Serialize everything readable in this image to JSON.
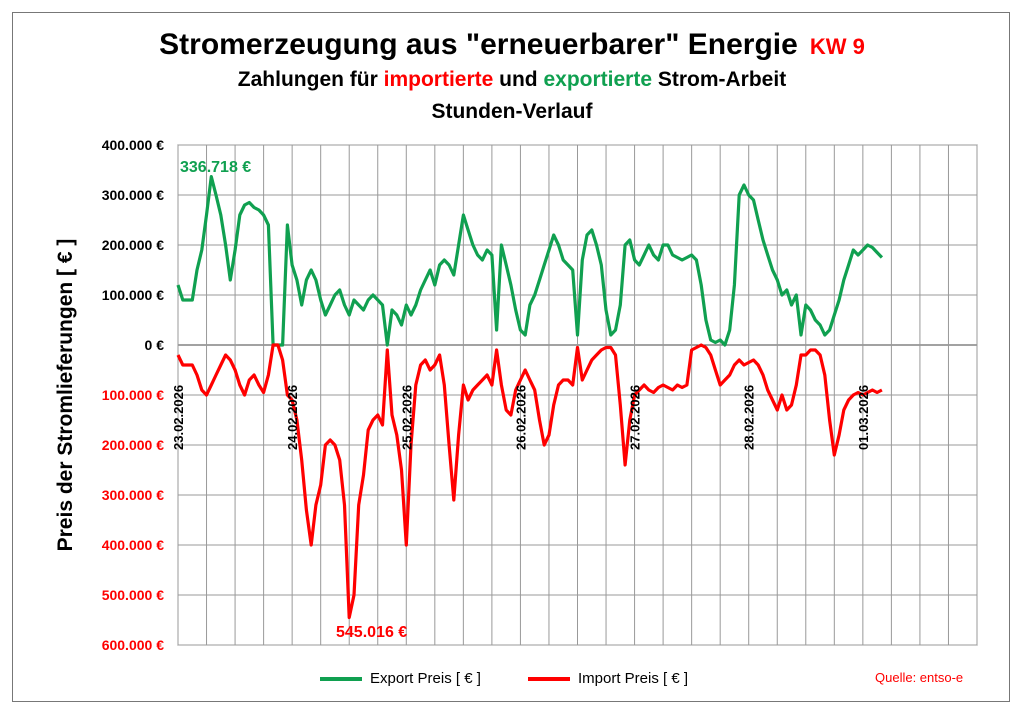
{
  "title": {
    "main": "Stromerzeugung aus \"erneuerbarer\" Energie",
    "week": "KW 9",
    "line2_pre": "Zahlungen für ",
    "line2_import": "importierte",
    "line2_mid": " und ",
    "line2_export": "exportierte",
    "line2_post": " Strom-Arbeit",
    "line3": "Stunden-Verlauf"
  },
  "colors": {
    "export": "#10a050",
    "import": "#ff0000",
    "grid": "#999999"
  },
  "legend": {
    "export_label": "Export Preis [ € ]",
    "import_label": "Import Preis [ € ]"
  },
  "source": "Quelle: entso-e",
  "chart_data": {
    "type": "line",
    "ylabel": "Preis der Stromlieferungen [ € ]",
    "ylim": [
      -600000,
      400000
    ],
    "ytick_values": [
      400000,
      300000,
      200000,
      100000,
      0,
      -100000,
      -200000,
      -300000,
      -400000,
      -500000,
      -600000
    ],
    "ytick_labels": [
      "400.000 €",
      "300.000 €",
      "200.000 €",
      "100.000 €",
      "0 €",
      "100.000 €",
      "200.000 €",
      "300.000 €",
      "400.000 €",
      "500.000 €",
      "600.000 €"
    ],
    "x_hours": 168,
    "xtick_labels": [
      "23.02.2026",
      "24.02.2026",
      "25.02.2026",
      "26.02.2026",
      "27.02.2026",
      "28.02.2026",
      "01.03.2026"
    ],
    "annotations": {
      "export_max": "336.718 €",
      "import_max": "545.016 €"
    },
    "series": [
      {
        "name": "Export Preis [ € ]",
        "points": [
          [
            0,
            120000
          ],
          [
            1,
            90000
          ],
          [
            3,
            90000
          ],
          [
            4,
            150000
          ],
          [
            5,
            190000
          ],
          [
            6,
            260000
          ],
          [
            7,
            336718
          ],
          [
            8,
            300000
          ],
          [
            9,
            260000
          ],
          [
            10,
            200000
          ],
          [
            11,
            130000
          ],
          [
            12,
            190000
          ],
          [
            13,
            260000
          ],
          [
            14,
            280000
          ],
          [
            15,
            285000
          ],
          [
            16,
            275000
          ],
          [
            17,
            270000
          ],
          [
            18,
            260000
          ],
          [
            19,
            240000
          ],
          [
            20,
            0
          ],
          [
            21,
            0
          ],
          [
            22,
            0
          ],
          [
            23,
            240000
          ],
          [
            24,
            160000
          ],
          [
            25,
            130000
          ],
          [
            26,
            80000
          ],
          [
            27,
            130000
          ],
          [
            28,
            150000
          ],
          [
            29,
            130000
          ],
          [
            30,
            90000
          ],
          [
            31,
            60000
          ],
          [
            32,
            80000
          ],
          [
            33,
            100000
          ],
          [
            34,
            110000
          ],
          [
            35,
            80000
          ],
          [
            36,
            60000
          ],
          [
            37,
            90000
          ],
          [
            38,
            80000
          ],
          [
            39,
            70000
          ],
          [
            40,
            90000
          ],
          [
            41,
            100000
          ],
          [
            42,
            90000
          ],
          [
            43,
            80000
          ],
          [
            44,
            0
          ],
          [
            45,
            70000
          ],
          [
            46,
            60000
          ],
          [
            47,
            40000
          ],
          [
            48,
            80000
          ],
          [
            49,
            60000
          ],
          [
            50,
            80000
          ],
          [
            51,
            110000
          ],
          [
            52,
            130000
          ],
          [
            53,
            150000
          ],
          [
            54,
            120000
          ],
          [
            55,
            160000
          ],
          [
            56,
            170000
          ],
          [
            57,
            160000
          ],
          [
            58,
            140000
          ],
          [
            59,
            200000
          ],
          [
            60,
            260000
          ],
          [
            61,
            230000
          ],
          [
            62,
            200000
          ],
          [
            63,
            180000
          ],
          [
            64,
            170000
          ],
          [
            65,
            190000
          ],
          [
            66,
            180000
          ],
          [
            67,
            30000
          ],
          [
            68,
            200000
          ],
          [
            69,
            160000
          ],
          [
            70,
            120000
          ],
          [
            71,
            70000
          ],
          [
            72,
            30000
          ],
          [
            73,
            20000
          ],
          [
            74,
            80000
          ],
          [
            75,
            100000
          ],
          [
            76,
            130000
          ],
          [
            77,
            160000
          ],
          [
            78,
            190000
          ],
          [
            79,
            220000
          ],
          [
            80,
            200000
          ],
          [
            81,
            170000
          ],
          [
            82,
            160000
          ],
          [
            83,
            150000
          ],
          [
            84,
            20000
          ],
          [
            85,
            170000
          ],
          [
            86,
            220000
          ],
          [
            87,
            230000
          ],
          [
            88,
            200000
          ],
          [
            89,
            160000
          ],
          [
            90,
            70000
          ],
          [
            91,
            20000
          ],
          [
            92,
            30000
          ],
          [
            93,
            80000
          ],
          [
            94,
            200000
          ],
          [
            95,
            210000
          ],
          [
            96,
            170000
          ],
          [
            97,
            160000
          ],
          [
            98,
            180000
          ],
          [
            99,
            200000
          ],
          [
            100,
            180000
          ],
          [
            101,
            170000
          ],
          [
            102,
            200000
          ],
          [
            103,
            200000
          ],
          [
            104,
            180000
          ],
          [
            105,
            175000
          ],
          [
            106,
            170000
          ],
          [
            107,
            175000
          ],
          [
            108,
            180000
          ],
          [
            109,
            170000
          ],
          [
            110,
            120000
          ],
          [
            111,
            50000
          ],
          [
            112,
            10000
          ],
          [
            113,
            5000
          ],
          [
            114,
            10000
          ],
          [
            115,
            0
          ],
          [
            116,
            30000
          ],
          [
            117,
            120000
          ],
          [
            118,
            300000
          ],
          [
            119,
            320000
          ],
          [
            120,
            300000
          ],
          [
            121,
            290000
          ],
          [
            122,
            250000
          ],
          [
            123,
            210000
          ],
          [
            124,
            180000
          ],
          [
            125,
            150000
          ],
          [
            126,
            130000
          ],
          [
            127,
            100000
          ],
          [
            128,
            110000
          ],
          [
            129,
            80000
          ],
          [
            130,
            100000
          ],
          [
            131,
            20000
          ],
          [
            132,
            80000
          ],
          [
            133,
            70000
          ],
          [
            134,
            50000
          ],
          [
            135,
            40000
          ],
          [
            136,
            20000
          ],
          [
            137,
            30000
          ],
          [
            138,
            60000
          ],
          [
            139,
            90000
          ],
          [
            140,
            130000
          ],
          [
            141,
            160000
          ],
          [
            142,
            190000
          ],
          [
            143,
            180000
          ],
          [
            144,
            190000
          ],
          [
            145,
            200000
          ],
          [
            146,
            195000
          ],
          [
            147,
            185000
          ],
          [
            148,
            175000
          ]
        ]
      },
      {
        "name": "Import Preis [ € ]",
        "points": [
          [
            0,
            -20000
          ],
          [
            1,
            -40000
          ],
          [
            3,
            -40000
          ],
          [
            4,
            -60000
          ],
          [
            5,
            -90000
          ],
          [
            6,
            -100000
          ],
          [
            7,
            -80000
          ],
          [
            8,
            -60000
          ],
          [
            9,
            -40000
          ],
          [
            10,
            -20000
          ],
          [
            11,
            -30000
          ],
          [
            12,
            -50000
          ],
          [
            13,
            -80000
          ],
          [
            14,
            -100000
          ],
          [
            15,
            -70000
          ],
          [
            16,
            -60000
          ],
          [
            17,
            -80000
          ],
          [
            18,
            -95000
          ],
          [
            19,
            -60000
          ],
          [
            20,
            0
          ],
          [
            21,
            0
          ],
          [
            22,
            -30000
          ],
          [
            23,
            -100000
          ],
          [
            24,
            -110000
          ],
          [
            25,
            -150000
          ],
          [
            26,
            -230000
          ],
          [
            27,
            -330000
          ],
          [
            28,
            -400000
          ],
          [
            29,
            -320000
          ],
          [
            30,
            -280000
          ],
          [
            31,
            -200000
          ],
          [
            32,
            -190000
          ],
          [
            33,
            -200000
          ],
          [
            34,
            -230000
          ],
          [
            35,
            -320000
          ],
          [
            36,
            -545016
          ],
          [
            37,
            -500000
          ],
          [
            38,
            -320000
          ],
          [
            39,
            -260000
          ],
          [
            40,
            -170000
          ],
          [
            41,
            -150000
          ],
          [
            42,
            -140000
          ],
          [
            43,
            -160000
          ],
          [
            44,
            -10000
          ],
          [
            45,
            -140000
          ],
          [
            46,
            -180000
          ],
          [
            47,
            -250000
          ],
          [
            48,
            -400000
          ],
          [
            49,
            -200000
          ],
          [
            50,
            -80000
          ],
          [
            51,
            -40000
          ],
          [
            52,
            -30000
          ],
          [
            53,
            -50000
          ],
          [
            54,
            -40000
          ],
          [
            55,
            -20000
          ],
          [
            56,
            -80000
          ],
          [
            57,
            -200000
          ],
          [
            58,
            -310000
          ],
          [
            59,
            -180000
          ],
          [
            60,
            -80000
          ],
          [
            61,
            -110000
          ],
          [
            62,
            -90000
          ],
          [
            63,
            -80000
          ],
          [
            64,
            -70000
          ],
          [
            65,
            -60000
          ],
          [
            66,
            -80000
          ],
          [
            67,
            -10000
          ],
          [
            68,
            -80000
          ],
          [
            69,
            -130000
          ],
          [
            70,
            -140000
          ],
          [
            71,
            -90000
          ],
          [
            72,
            -70000
          ],
          [
            73,
            -50000
          ],
          [
            74,
            -70000
          ],
          [
            75,
            -90000
          ],
          [
            76,
            -150000
          ],
          [
            77,
            -200000
          ],
          [
            78,
            -180000
          ],
          [
            79,
            -120000
          ],
          [
            80,
            -80000
          ],
          [
            81,
            -70000
          ],
          [
            82,
            -70000
          ],
          [
            83,
            -80000
          ],
          [
            84,
            -5000
          ],
          [
            85,
            -70000
          ],
          [
            86,
            -50000
          ],
          [
            87,
            -30000
          ],
          [
            88,
            -20000
          ],
          [
            89,
            -10000
          ],
          [
            90,
            -5000
          ],
          [
            91,
            -5000
          ],
          [
            92,
            -20000
          ],
          [
            93,
            -120000
          ],
          [
            94,
            -240000
          ],
          [
            95,
            -150000
          ],
          [
            96,
            -100000
          ],
          [
            97,
            -90000
          ],
          [
            98,
            -80000
          ],
          [
            99,
            -90000
          ],
          [
            100,
            -95000
          ],
          [
            101,
            -85000
          ],
          [
            102,
            -80000
          ],
          [
            103,
            -85000
          ],
          [
            104,
            -90000
          ],
          [
            105,
            -80000
          ],
          [
            106,
            -85000
          ],
          [
            107,
            -80000
          ],
          [
            108,
            -10000
          ],
          [
            109,
            -5000
          ],
          [
            110,
            0
          ],
          [
            111,
            -5000
          ],
          [
            112,
            -20000
          ],
          [
            113,
            -50000
          ],
          [
            114,
            -80000
          ],
          [
            115,
            -70000
          ],
          [
            116,
            -60000
          ],
          [
            117,
            -40000
          ],
          [
            118,
            -30000
          ],
          [
            119,
            -40000
          ],
          [
            120,
            -35000
          ],
          [
            121,
            -30000
          ],
          [
            122,
            -40000
          ],
          [
            123,
            -60000
          ],
          [
            124,
            -90000
          ],
          [
            125,
            -110000
          ],
          [
            126,
            -130000
          ],
          [
            127,
            -100000
          ],
          [
            128,
            -130000
          ],
          [
            129,
            -120000
          ],
          [
            130,
            -80000
          ],
          [
            131,
            -20000
          ],
          [
            132,
            -20000
          ],
          [
            133,
            -10000
          ],
          [
            134,
            -10000
          ],
          [
            135,
            -20000
          ],
          [
            136,
            -60000
          ],
          [
            137,
            -150000
          ],
          [
            138,
            -220000
          ],
          [
            139,
            -180000
          ],
          [
            140,
            -130000
          ],
          [
            141,
            -110000
          ],
          [
            142,
            -100000
          ],
          [
            143,
            -95000
          ],
          [
            144,
            -100000
          ],
          [
            145,
            -95000
          ],
          [
            146,
            -90000
          ],
          [
            147,
            -95000
          ],
          [
            148,
            -90000
          ]
        ]
      }
    ]
  }
}
